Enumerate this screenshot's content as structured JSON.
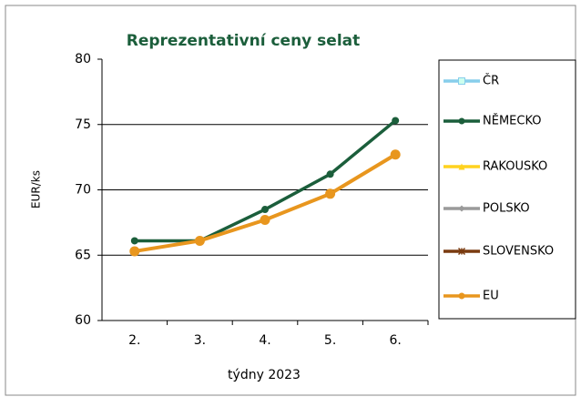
{
  "chart_data": {
    "type": "line",
    "title": "Reprezentativní  ceny selat",
    "x_label": "týdny 2023",
    "y_label": "EUR/ks",
    "categories": [
      "2.",
      "3.",
      "4.",
      "5.",
      "6."
    ],
    "series": [
      {
        "name": "ČR",
        "color": "#87ceeb",
        "marker": "square",
        "values": [
          null,
          null,
          null,
          null,
          null
        ]
      },
      {
        "name": "NĚMECKO",
        "color": "#1b5e3b",
        "marker": "circle",
        "values": [
          66.1,
          66.1,
          68.5,
          71.2,
          75.3
        ]
      },
      {
        "name": "RAKOUSKO",
        "color": "#ffd21f",
        "marker": "triangle",
        "values": [
          null,
          null,
          null,
          null,
          null
        ]
      },
      {
        "name": "POLSKO",
        "color": "#9a9a9a",
        "marker": "diamond",
        "values": [
          null,
          null,
          null,
          null,
          null
        ]
      },
      {
        "name": "SLOVENSKO",
        "color": "#7a3b10",
        "marker": "star",
        "values": [
          null,
          null,
          null,
          null,
          null
        ]
      },
      {
        "name": "EU",
        "color": "#e8961e",
        "marker": "circle",
        "values": [
          65.3,
          66.1,
          67.7,
          69.7,
          72.7
        ]
      }
    ],
    "ylim": [
      60,
      80
    ],
    "yticks": [
      60,
      65,
      70,
      75,
      80
    ],
    "grid": true,
    "legend": "right"
  }
}
